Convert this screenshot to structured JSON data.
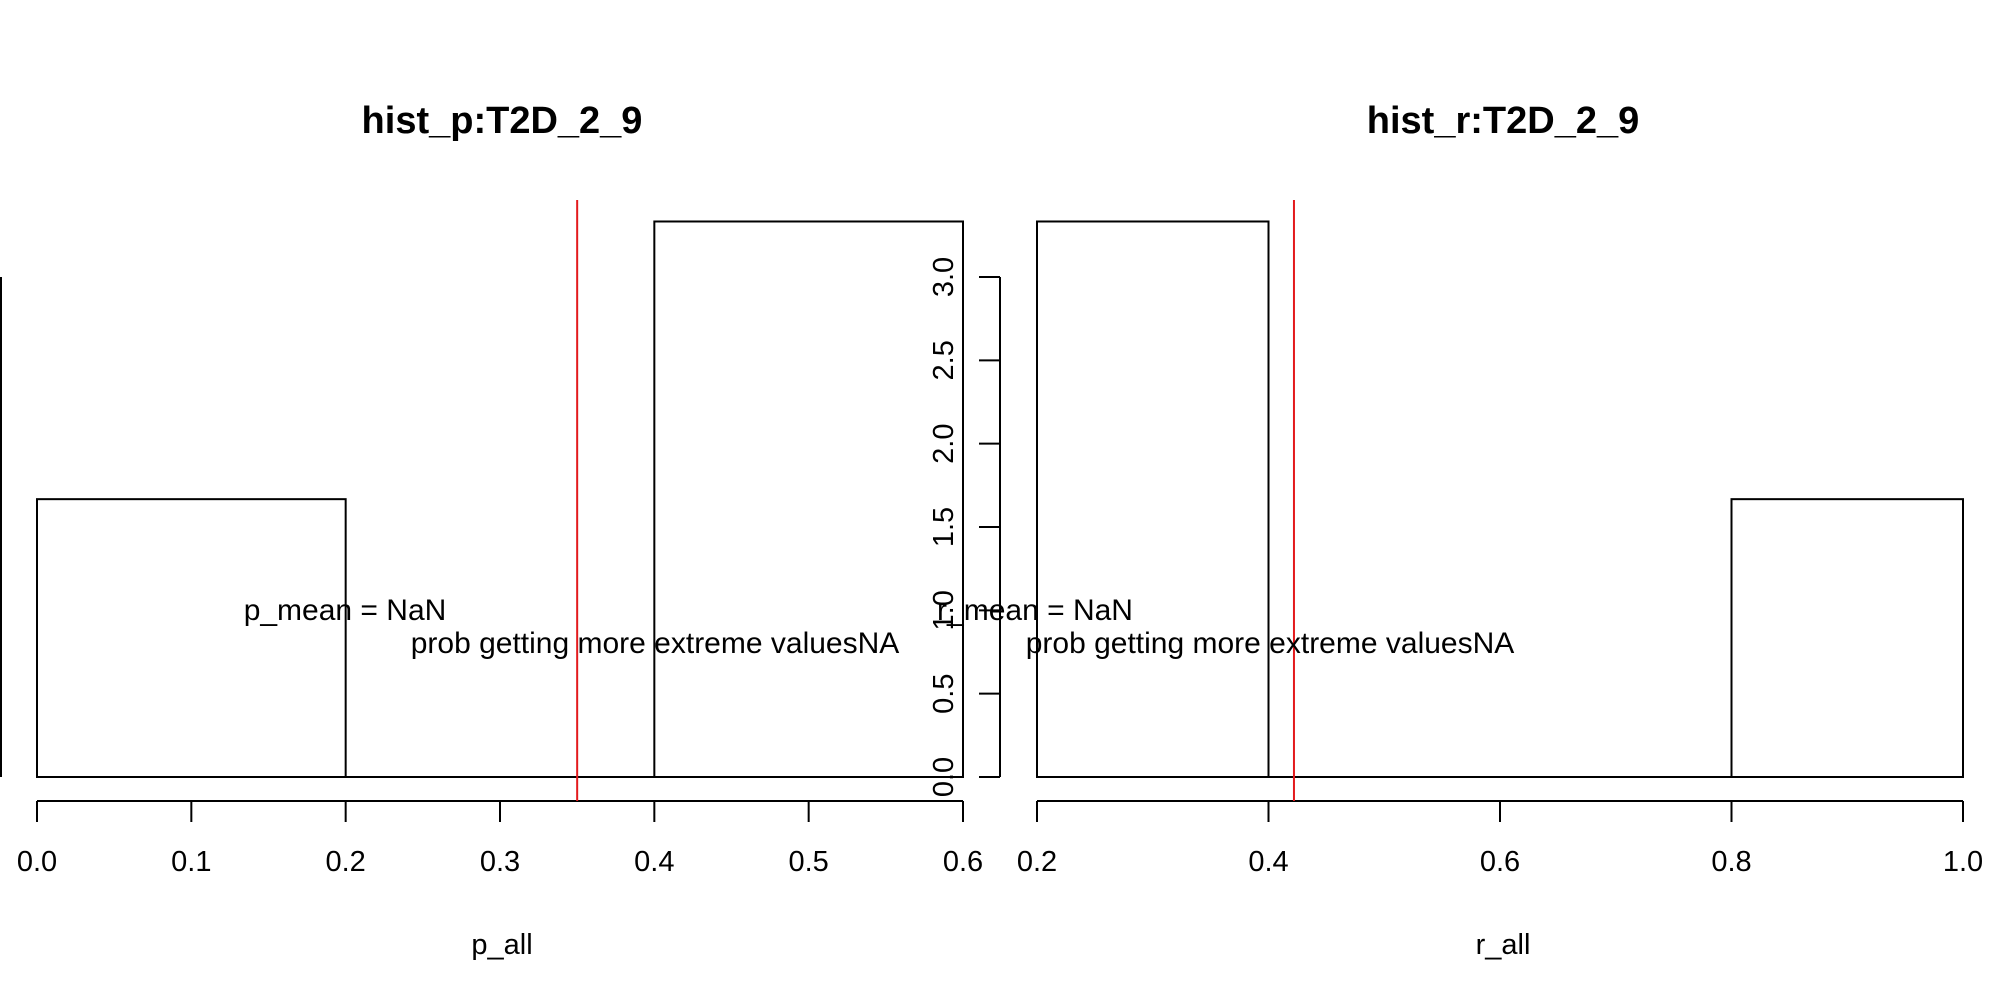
{
  "chart_data": [
    {
      "type": "bar",
      "title": "hist_p:T2D_2_9",
      "xlabel": "p_all",
      "ylabel": "",
      "bins": [
        [
          0.0,
          0.2
        ],
        [
          0.2,
          0.4
        ],
        [
          0.4,
          0.6
        ]
      ],
      "values": [
        1.667,
        0,
        3.333
      ],
      "xlim": [
        0.0,
        0.6
      ],
      "ylim": [
        0.0,
        3.0
      ],
      "x_ticks": [
        "0.0",
        "0.1",
        "0.2",
        "0.3",
        "0.4",
        "0.5",
        "0.6"
      ],
      "y_ticks": [
        "0.0",
        "0.5",
        "1.0",
        "1.5",
        "2.0",
        "2.5",
        "3.0"
      ],
      "vline": {
        "x": 0.35,
        "color": "#e31a1c"
      },
      "annotations": [
        "p_mean = NaN",
        "prob getting more extreme valuesNA"
      ]
    },
    {
      "type": "bar",
      "title": "hist_r:T2D_2_9",
      "xlabel": "r_all",
      "ylabel": "",
      "bins": [
        [
          0.2,
          0.4
        ],
        [
          0.4,
          0.6
        ],
        [
          0.6,
          0.8
        ],
        [
          0.8,
          1.0
        ]
      ],
      "values": [
        3.333,
        0,
        0,
        1.667
      ],
      "xlim": [
        0.2,
        1.0
      ],
      "ylim": [
        0.0,
        3.0
      ],
      "x_ticks": [
        "0.2",
        "0.4",
        "0.6",
        "0.8",
        "1.0"
      ],
      "vline": {
        "x": 0.422,
        "color": "#e31a1c"
      },
      "annotations": [
        "r_mean = NaN",
        "prob getting more extreme valuesNA"
      ]
    }
  ]
}
